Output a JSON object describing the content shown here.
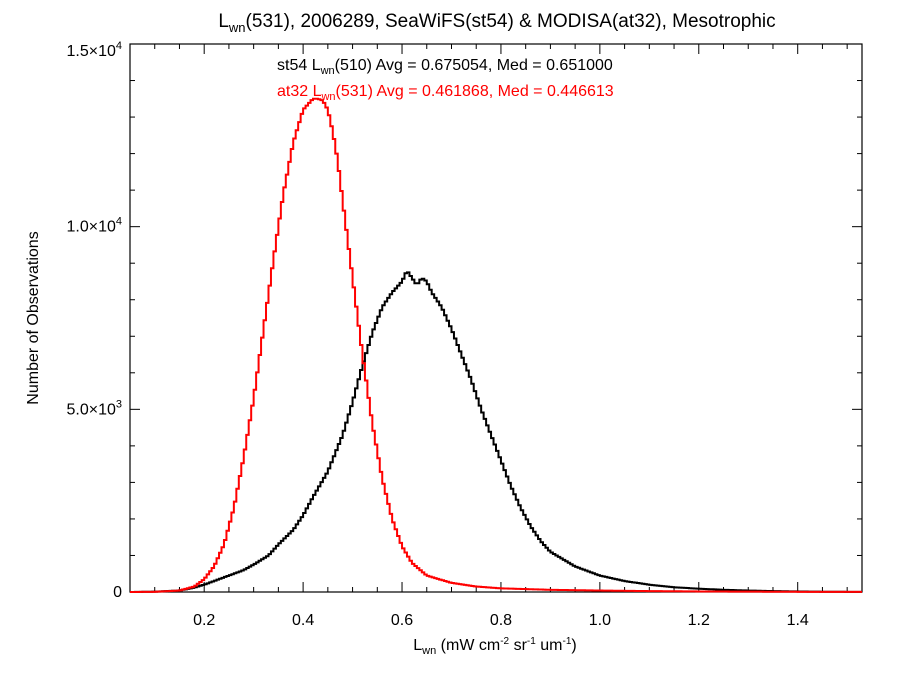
{
  "chart_data": {
    "type": "line",
    "title": {
      "pre": "L",
      "sub": "wn",
      "post": "(531), 2006289, SeaWiFS(st54) & MODISA(at32), Mesotrophic"
    },
    "xlabel": {
      "pre": "L",
      "sub": "wn",
      "post": " (mW cm",
      "sup1": "-2",
      "mid": " sr",
      "sup2": "-1",
      "mid2": " um",
      "sup3": "-1",
      "end": ")"
    },
    "ylabel": "Number of Observations",
    "xlim": [
      0.05,
      1.53
    ],
    "ylim": [
      0,
      15000
    ],
    "x_ticks": [
      0.2,
      0.4,
      0.6,
      0.8,
      1.0,
      1.2,
      1.4
    ],
    "x_tick_labels": [
      "0.2",
      "0.4",
      "0.6",
      "0.8",
      "1.0",
      "1.2",
      "1.4"
    ],
    "y_ticks": [
      0,
      5000,
      10000,
      15000
    ],
    "y_tick_labels": [
      {
        "base": "0",
        "exp": ""
      },
      {
        "base": "5.0×10",
        "exp": "3"
      },
      {
        "base": "1.0×10",
        "exp": "4"
      },
      {
        "base": "1.5×10",
        "exp": "4"
      }
    ],
    "annotations": [
      {
        "pre": "st54 L",
        "sub": "wn",
        "post": "(510) Avg = 0.675054, Med = 0.651000",
        "color": "#000000"
      },
      {
        "pre": "at32 L",
        "sub": "wn",
        "post": "(531) Avg = 0.461868, Med = 0.446613",
        "color": "#ff0000"
      }
    ],
    "series": [
      {
        "color": "#000000",
        "x": [
          0.05,
          0.1,
          0.15,
          0.18,
          0.2,
          0.22,
          0.25,
          0.28,
          0.3,
          0.33,
          0.35,
          0.38,
          0.4,
          0.42,
          0.45,
          0.48,
          0.5,
          0.52,
          0.54,
          0.56,
          0.58,
          0.6,
          0.61,
          0.62,
          0.63,
          0.64,
          0.65,
          0.66,
          0.68,
          0.7,
          0.72,
          0.74,
          0.76,
          0.78,
          0.8,
          0.82,
          0.84,
          0.86,
          0.88,
          0.9,
          0.95,
          1.0,
          1.05,
          1.1,
          1.15,
          1.2,
          1.25,
          1.3,
          1.35,
          1.4,
          1.45,
          1.53
        ],
        "y": [
          0,
          10,
          40,
          120,
          200,
          300,
          450,
          600,
          750,
          1000,
          1300,
          1700,
          2100,
          2600,
          3300,
          4300,
          5200,
          6200,
          7100,
          7800,
          8200,
          8500,
          8800,
          8600,
          8400,
          8600,
          8500,
          8200,
          7800,
          7200,
          6500,
          5800,
          5000,
          4300,
          3600,
          2900,
          2300,
          1800,
          1400,
          1100,
          700,
          450,
          300,
          200,
          130,
          90,
          60,
          40,
          25,
          15,
          8,
          3
        ]
      },
      {
        "color": "#ff0000",
        "x": [
          0.05,
          0.1,
          0.15,
          0.18,
          0.2,
          0.22,
          0.24,
          0.26,
          0.28,
          0.3,
          0.32,
          0.34,
          0.36,
          0.38,
          0.4,
          0.42,
          0.43,
          0.44,
          0.45,
          0.46,
          0.47,
          0.48,
          0.5,
          0.52,
          0.54,
          0.56,
          0.58,
          0.6,
          0.62,
          0.65,
          0.7,
          0.75,
          0.8,
          0.9,
          1.0,
          1.1,
          1.2,
          1.3,
          1.4,
          1.53
        ],
        "y": [
          0,
          5,
          40,
          150,
          350,
          700,
          1300,
          2300,
          3700,
          5300,
          7200,
          9100,
          10900,
          12300,
          13200,
          13500,
          13500,
          13450,
          13200,
          12600,
          11800,
          10700,
          8600,
          6500,
          4600,
          3100,
          2000,
          1250,
          800,
          450,
          250,
          150,
          100,
          60,
          40,
          25,
          15,
          10,
          5,
          2
        ]
      }
    ]
  }
}
